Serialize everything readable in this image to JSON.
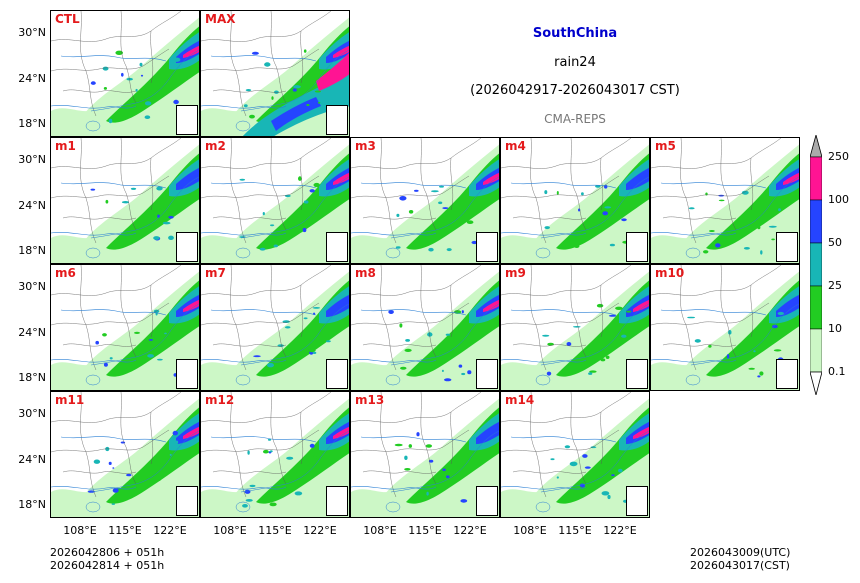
{
  "title": {
    "region": "SouthChina",
    "variable": "rain24",
    "period": "(2026042917-2026043017 CST)",
    "model": "CMA-REPS"
  },
  "panels": [
    "CTL",
    "MAX",
    "m1",
    "m2",
    "m3",
    "m4",
    "m5",
    "m6",
    "m7",
    "m8",
    "m9",
    "m10",
    "m11",
    "m12",
    "m13",
    "m14"
  ],
  "axes": {
    "y_ticks": [
      "30°N",
      "24°N",
      "18°N"
    ],
    "x_ticks": [
      "108°E",
      "115°E",
      "122°E"
    ]
  },
  "colorbar": {
    "levels": [
      "0.1",
      "10",
      "25",
      "50",
      "100",
      "250"
    ],
    "colors": [
      "#ccf7c6",
      "#22cc22",
      "#18b6b6",
      "#2544ff",
      "#ff1493"
    ],
    "under_color": "#ffffff",
    "over_color": "#aaaaaa"
  },
  "footer": {
    "init_utc": "2026042806  +  051h",
    "init_cst": "2026042814  +  051h",
    "valid_utc": "2026043009(UTC)",
    "valid_cst": "2026043017(CST)"
  }
}
